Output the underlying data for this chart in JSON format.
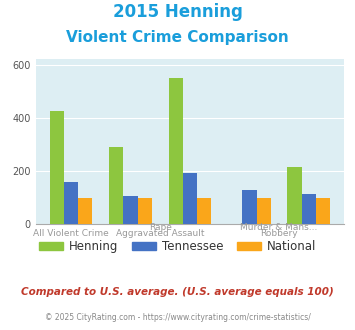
{
  "title_line1": "2015 Henning",
  "title_line2": "Violent Crime Comparison",
  "title_color": "#1a9edb",
  "henning": [
    425,
    290,
    550,
    0,
    215
  ],
  "tennessee": [
    160,
    105,
    195,
    130,
    115
  ],
  "national": [
    100,
    100,
    100,
    100,
    100
  ],
  "color_henning": "#8dc63f",
  "color_tennessee": "#4472c4",
  "color_national": "#faa61a",
  "bg_color": "#ddeef3",
  "ylim": [
    0,
    620
  ],
  "yticks": [
    0,
    200,
    400,
    600
  ],
  "cat_labels_top": [
    "",
    "Rape",
    "",
    "Murder & Mans...",
    ""
  ],
  "cat_labels_bot": [
    "All Violent Crime",
    "Aggravated Assault",
    "",
    "Robbery",
    ""
  ],
  "legend_labels": [
    "Henning",
    "Tennessee",
    "National"
  ],
  "footnote1": "Compared to U.S. average. (U.S. average equals 100)",
  "footnote2": "© 2025 CityRating.com - https://www.cityrating.com/crime-statistics/",
  "footnote1_color": "#c0392b",
  "footnote2_color": "#888888"
}
